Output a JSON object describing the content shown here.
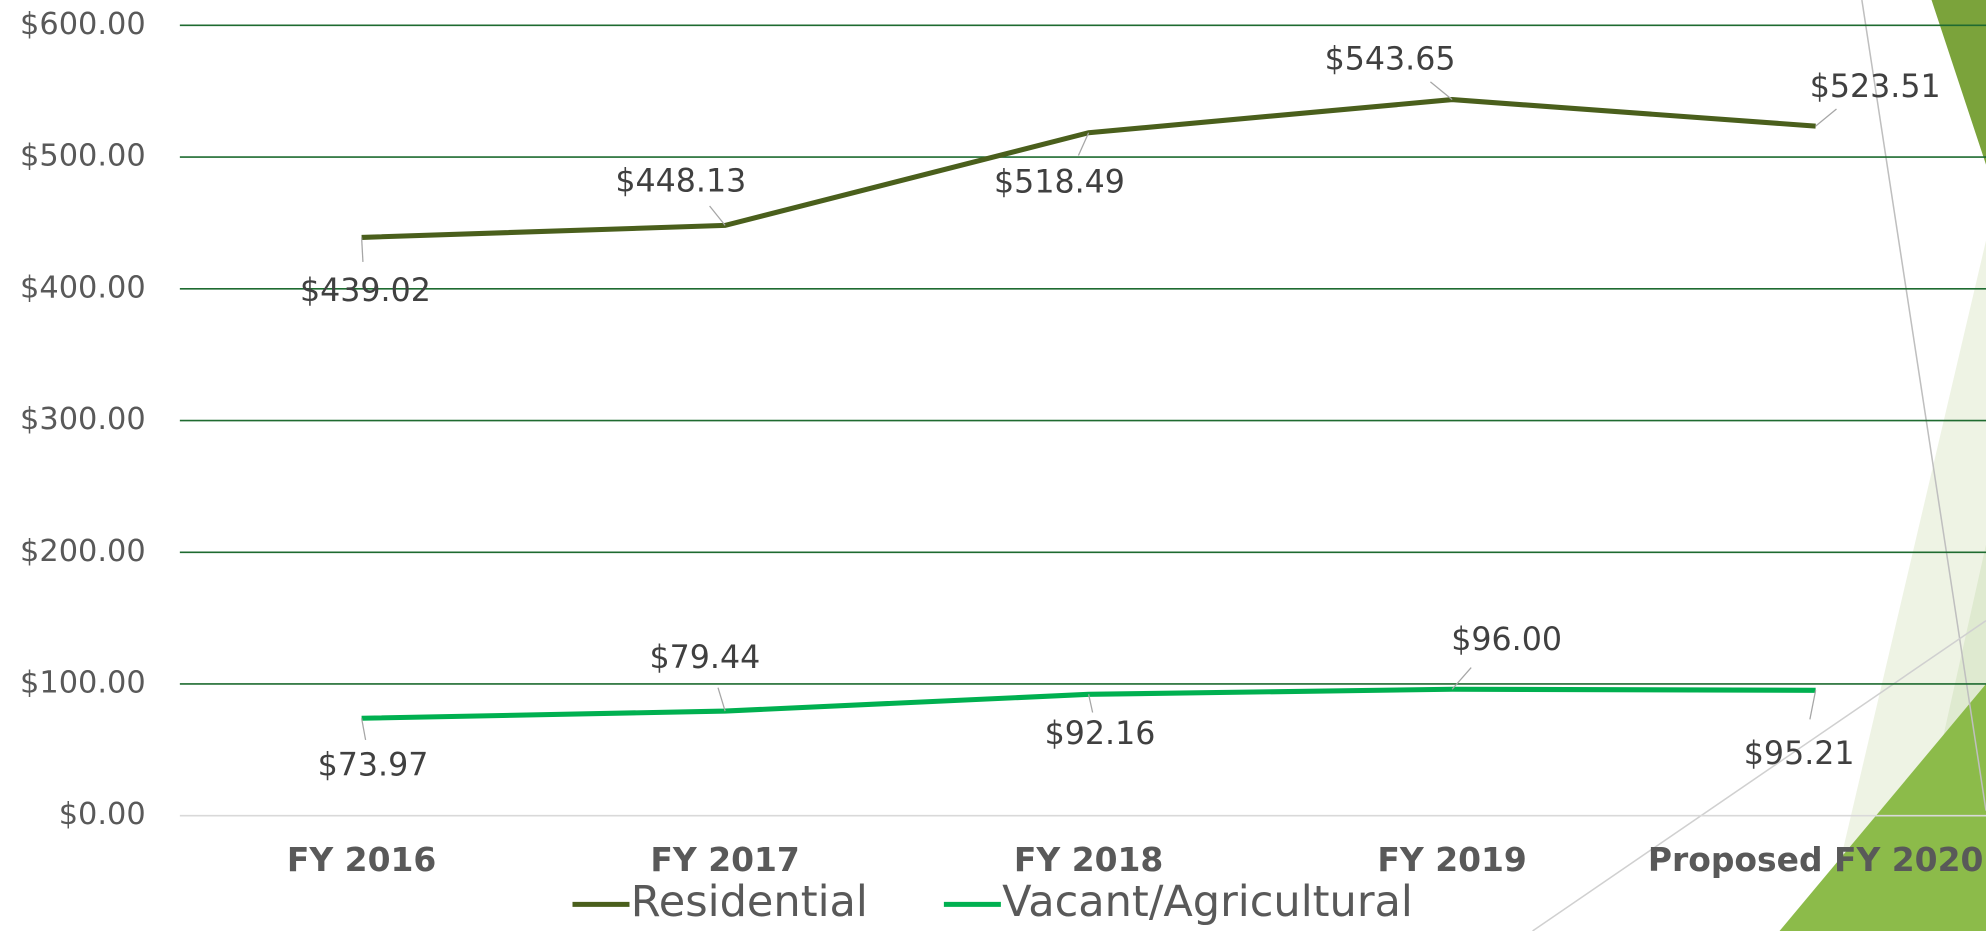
{
  "chart_data": {
    "type": "line",
    "categories": [
      "FY 2016",
      "FY 2017",
      "FY 2018",
      "FY 2019",
      "Proposed FY 2020"
    ],
    "series": [
      {
        "name": "Residential",
        "color": "#4a5f1c",
        "values": [
          439.02,
          448.13,
          518.49,
          543.65,
          523.51
        ],
        "value_labels": [
          "$439.02",
          "$448.13",
          "$518.49",
          "$543.65",
          "$523.51"
        ]
      },
      {
        "name": "Vacant/Agricultural",
        "color": "#00b050",
        "values": [
          73.97,
          79.44,
          92.16,
          96.0,
          95.21
        ],
        "value_labels": [
          "$73.97",
          "$79.44",
          "$92.16",
          "$96.00",
          "$95.21"
        ]
      }
    ],
    "ylim": [
      0,
      600
    ],
    "yticks": [
      {
        "value": 0,
        "label": "$0.00"
      },
      {
        "value": 100,
        "label": "$100.00"
      },
      {
        "value": 200,
        "label": "$200.00"
      },
      {
        "value": 300,
        "label": "$300.00"
      },
      {
        "value": 400,
        "label": "$400.00"
      },
      {
        "value": 500,
        "label": "$500.00"
      },
      {
        "value": 600,
        "label": "$600.00"
      }
    ],
    "grid": true,
    "legend": "bottom"
  }
}
